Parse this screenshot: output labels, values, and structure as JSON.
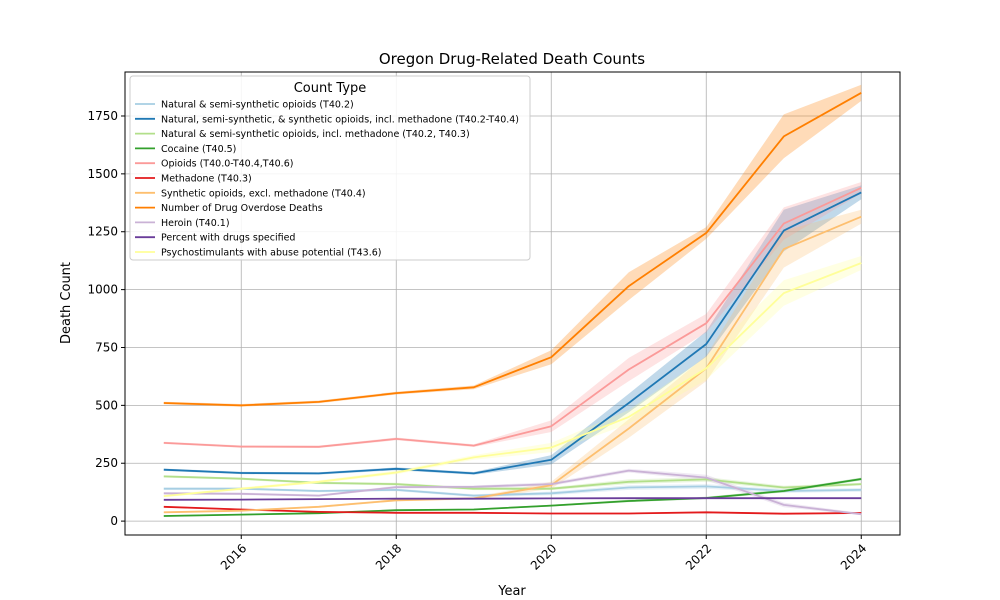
{
  "chart_data": {
    "type": "line",
    "title": "Oregon Drug-Related Death Counts",
    "xlabel": "Year",
    "ylabel": "Death Count",
    "xlim": [
      2014.5,
      2024.5
    ],
    "ylim": [
      -60,
      1940
    ],
    "x_ticks": [
      2016,
      2018,
      2020,
      2022,
      2024
    ],
    "y_ticks": [
      0,
      250,
      500,
      750,
      1000,
      1250,
      1500,
      1750
    ],
    "grid": true,
    "legend": {
      "title": "Count Type",
      "placement": "top-left"
    },
    "x": [
      2015,
      2016,
      2017,
      2018,
      2019,
      2020,
      2021,
      2022,
      2023,
      2024
    ],
    "series": [
      {
        "name": "Natural & semi-synthetic opioids (T40.2)",
        "color": "#a6cee3",
        "values": [
          140,
          140,
          130,
          135,
          110,
          120,
          145,
          150,
          130,
          135
        ],
        "band": [
          5,
          5,
          5,
          6,
          6,
          8,
          10,
          10,
          8,
          8
        ]
      },
      {
        "name": "Natural, semi-synthetic, & synthetic opioids, incl. methadone (T40.2-T40.4)",
        "color": "#1f78b4",
        "values": [
          222,
          208,
          206,
          226,
          206,
          265,
          510,
          765,
          1255,
          1420
        ],
        "band": [
          5,
          5,
          5,
          6,
          6,
          20,
          40,
          55,
          90,
          30
        ]
      },
      {
        "name": "Natural & semi-synthetic opioids, incl. methadone (T40.2, T40.3)",
        "color": "#b2df8a",
        "values": [
          193,
          183,
          165,
          160,
          140,
          140,
          170,
          180,
          145,
          160
        ],
        "band": [
          5,
          5,
          5,
          6,
          6,
          6,
          10,
          10,
          8,
          6
        ]
      },
      {
        "name": "Cocaine (T40.5)",
        "color": "#33a02c",
        "values": [
          22,
          28,
          34,
          47,
          50,
          67,
          87,
          100,
          130,
          182
        ],
        "band": [
          3,
          3,
          3,
          3,
          3,
          4,
          5,
          5,
          6,
          6
        ]
      },
      {
        "name": "Opioids (T40.0-T40.4,T40.6)",
        "color": "#fb9a99",
        "values": [
          338,
          322,
          321,
          355,
          326,
          410,
          655,
          855,
          1285,
          1440
        ],
        "band": [
          5,
          5,
          5,
          6,
          6,
          25,
          50,
          40,
          70,
          25
        ]
      },
      {
        "name": "Methadone (T40.3)",
        "color": "#e31a1c",
        "values": [
          62,
          50,
          40,
          36,
          36,
          33,
          33,
          38,
          32,
          35
        ],
        "band": [
          3,
          3,
          3,
          3,
          3,
          3,
          3,
          3,
          3,
          3
        ]
      },
      {
        "name": "Synthetic opioids, excl. methadone (T40.4)",
        "color": "#fdbf6f",
        "values": [
          38,
          45,
          62,
          90,
          98,
          155,
          400,
          660,
          1175,
          1315
        ],
        "band": [
          3,
          3,
          4,
          5,
          5,
          15,
          40,
          55,
          80,
          30
        ]
      },
      {
        "name": "Number of Drug Overdose Deaths",
        "color": "#ff7f00",
        "values": [
          510,
          500,
          515,
          553,
          578,
          708,
          1015,
          1245,
          1662,
          1850
        ],
        "band": [
          6,
          6,
          6,
          6,
          8,
          30,
          60,
          25,
          95,
          35
        ]
      },
      {
        "name": "Heroin (T40.1)",
        "color": "#cab2d6",
        "values": [
          120,
          118,
          110,
          147,
          148,
          160,
          218,
          188,
          70,
          30
        ],
        "band": [
          5,
          5,
          5,
          6,
          6,
          8,
          8,
          12,
          10,
          5
        ]
      },
      {
        "name": "Percent with drugs specified",
        "color": "#6a3d9a",
        "values": [
          92,
          93,
          95,
          97,
          97,
          98,
          99,
          99,
          99,
          99
        ],
        "band": [
          1,
          1,
          1,
          1,
          1,
          1,
          1,
          1,
          1,
          1
        ]
      },
      {
        "name": "Psychostimulants with abuse potential (T43.6)",
        "color": "#ffff99",
        "values": [
          108,
          140,
          170,
          210,
          275,
          318,
          450,
          660,
          985,
          1115
        ],
        "band": [
          5,
          6,
          6,
          8,
          10,
          20,
          30,
          50,
          55,
          30
        ]
      }
    ]
  }
}
